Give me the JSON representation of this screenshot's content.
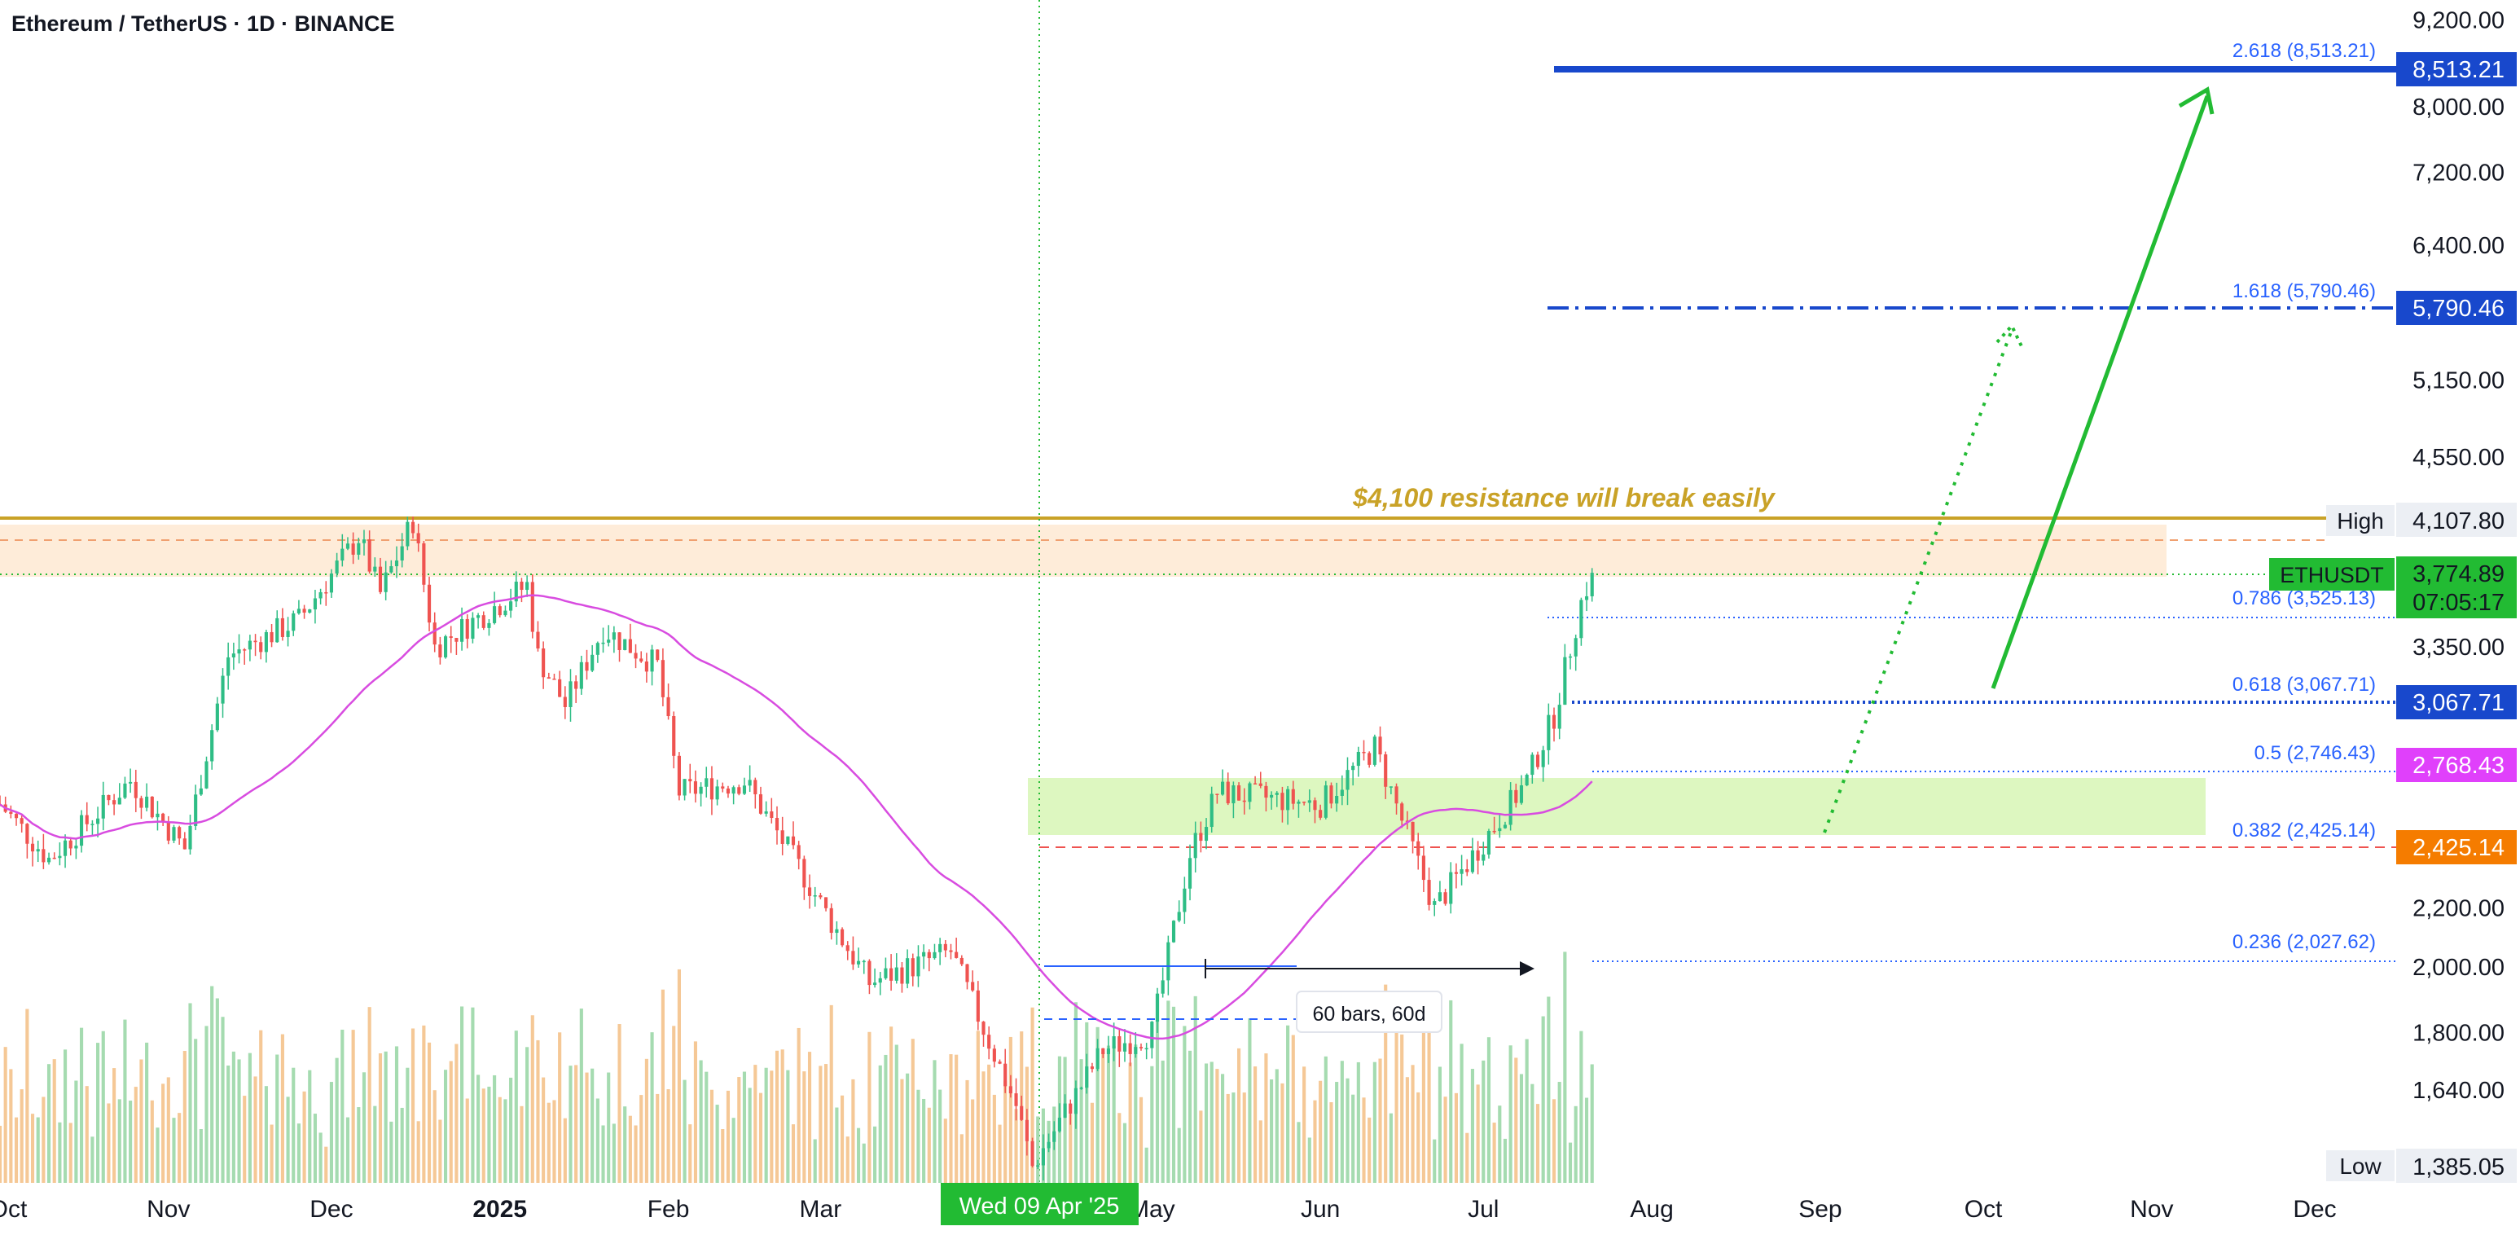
{
  "header": {
    "title": "Ethereum / TetherUS · 1D · BINANCE"
  },
  "colors": {
    "up": "#26a69a",
    "up_bright": "#2ebd85",
    "down": "#ef5350",
    "ma": "#d84ce0",
    "resistance": "#c9a227",
    "resistance_text": "#c9a227",
    "fib_blue": "#2962ff",
    "dark_blue_tag": "#1848cc",
    "zone_green": "#d4f5b0",
    "zone_orange": "#fde6cc",
    "arrow_green": "#22bb33",
    "price_tag": "#22bb33",
    "magenta_tag": "#e040fb",
    "orange_tag": "#f57c00",
    "label_gray": "#eceff4"
  },
  "annotations": {
    "resistance_text": "$4,100 resistance will break easily",
    "bars_label": "60 bars, 60d",
    "date_highlight": "Wed 09 Apr '25",
    "high_label": "High",
    "low_label": "Low",
    "symbol_tag": "ETHUSDT",
    "countdown": "07:05:17"
  },
  "chart_data": {
    "type": "candlestick",
    "title": "Ethereum / TetherUS · 1D · BINANCE",
    "x_axis_labels": [
      "Oct",
      "Nov",
      "Dec",
      "2025",
      "Feb",
      "Mar",
      "Apr",
      "May",
      "Jun",
      "Jul",
      "Aug",
      "Sep",
      "Oct",
      "Nov",
      "Dec"
    ],
    "y_axis_scale": "log",
    "y_axis_ticks": [
      "9,200.00",
      "8,000.00",
      "7,200.00",
      "6,400.00",
      "5,150.00",
      "4,550.00",
      "3,350.00",
      "2,200.00",
      "2,000.00",
      "1,800.00",
      "1,640.00",
      "1,385.05"
    ],
    "price_tags": [
      {
        "value": "8,513.21",
        "style": "dark-blue"
      },
      {
        "value": "5,790.46",
        "style": "dark-blue"
      },
      {
        "value": "4,107.80",
        "style": "gray",
        "label": "High"
      },
      {
        "value": "3,774.89",
        "style": "green",
        "label": "ETHUSDT",
        "sub": "07:05:17"
      },
      {
        "value": "3,067.71",
        "style": "dark-blue"
      },
      {
        "value": "2,768.43",
        "style": "magenta"
      },
      {
        "value": "2,425.14",
        "style": "orange"
      },
      {
        "value": "1,385.05",
        "style": "gray",
        "label": "Low"
      }
    ],
    "fib_levels": [
      {
        "ratio": "2.618",
        "value": 8513.21,
        "label": "2.618 (8,513.21)"
      },
      {
        "ratio": "1.618",
        "value": 5790.46,
        "label": "1.618 (5,790.46)"
      },
      {
        "ratio": "0.786",
        "value": 3525.13,
        "label": "0.786 (3,525.13)"
      },
      {
        "ratio": "0.618",
        "value": 3067.71,
        "label": "0.618 (3,067.71)"
      },
      {
        "ratio": "0.5",
        "value": 2746.43,
        "label": "0.5 (2,746.43)"
      },
      {
        "ratio": "0.382",
        "value": 2425.14,
        "label": "0.382 (2,425.14)"
      },
      {
        "ratio": "0.236",
        "value": 2027.62,
        "label": "0.236 (2,027.62)"
      }
    ],
    "resistance_level": 4107.8,
    "last_price": 3774.89,
    "ylim": [
      1385.05,
      9300
    ],
    "key_points": [
      [
        "2024-10-01",
        2600
      ],
      [
        "2024-10-10",
        2380
      ],
      [
        "2024-10-25",
        2700
      ],
      [
        "2024-11-04",
        2420
      ],
      [
        "2024-11-12",
        3300
      ],
      [
        "2024-11-25",
        3500
      ],
      [
        "2024-12-06",
        4000
      ],
      [
        "2024-12-10",
        3650
      ],
      [
        "2024-12-16",
        4107
      ],
      [
        "2024-12-20",
        3350
      ],
      [
        "2025-01-06",
        3700
      ],
      [
        "2025-01-08",
        3300
      ],
      [
        "2025-01-13",
        3050
      ],
      [
        "2025-01-20",
        3450
      ],
      [
        "2025-01-30",
        3250
      ],
      [
        "2025-02-03",
        2650
      ],
      [
        "2025-02-15",
        2700
      ],
      [
        "2025-02-25",
        2350
      ],
      [
        "2025-03-03",
        2150
      ],
      [
        "2025-03-10",
        1950
      ],
      [
        "2025-03-25",
        2050
      ],
      [
        "2025-04-06",
        1600
      ],
      [
        "2025-04-09",
        1450
      ],
      [
        "2025-04-22",
        1750
      ],
      [
        "2025-05-01",
        1800
      ],
      [
        "2025-05-08",
        2400
      ],
      [
        "2025-05-13",
        2650
      ],
      [
        "2025-06-01",
        2600
      ],
      [
        "2025-06-11",
        2850
      ],
      [
        "2025-06-22",
        2200
      ],
      [
        "2025-07-01",
        2450
      ],
      [
        "2025-07-09",
        2700
      ],
      [
        "2025-07-14",
        3000
      ],
      [
        "2025-07-19",
        3600
      ],
      [
        "2025-07-21",
        3774.89
      ]
    ]
  }
}
